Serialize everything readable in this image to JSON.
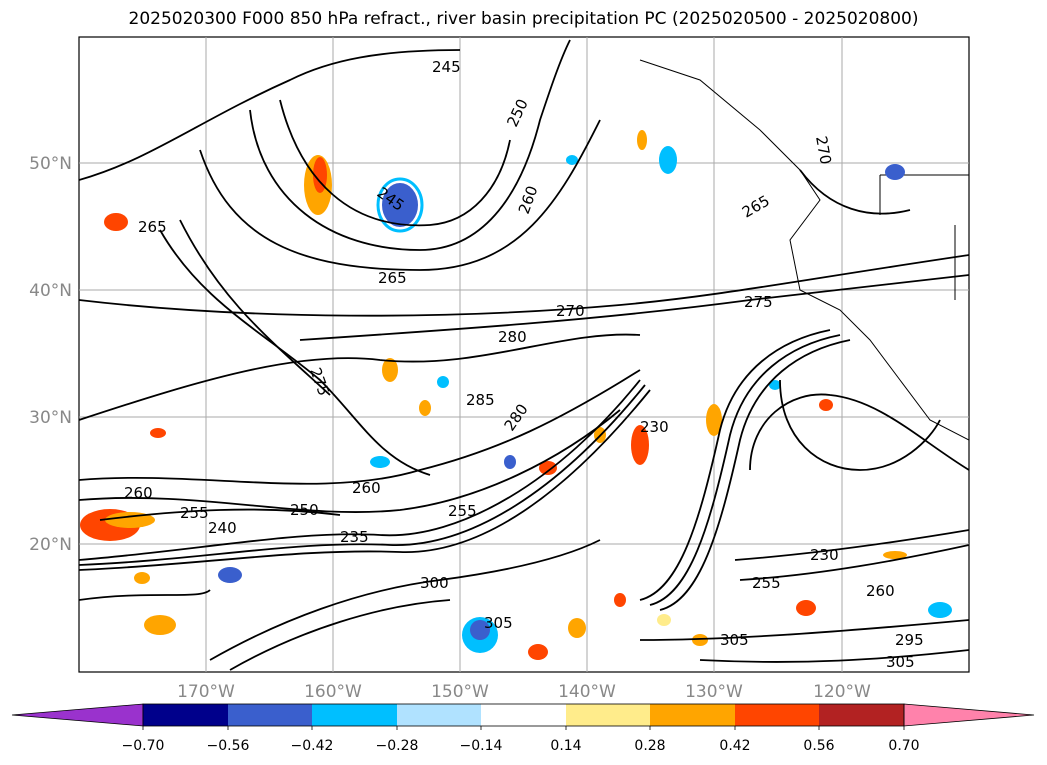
{
  "title": "2025020300 F000 850 hPa refract., river basin precipitation PC (2025020500 - 2025020800)",
  "map": {
    "lat_labels": [
      "50°N",
      "40°N",
      "30°N",
      "20°N"
    ],
    "lon_labels": [
      "170°W",
      "160°W",
      "150°W",
      "140°W",
      "130°W",
      "120°W"
    ],
    "contour_labels": [
      "245",
      "250",
      "260",
      "265",
      "270",
      "275",
      "280",
      "285",
      "265",
      "260",
      "255",
      "250",
      "235",
      "230",
      "240",
      "255",
      "260",
      "300",
      "305",
      "230",
      "255",
      "260",
      "305",
      "295",
      "305",
      "280",
      "270",
      "265",
      "245",
      "275"
    ]
  },
  "colorbar": {
    "ticks": [
      "−0.70",
      "−0.56",
      "−0.42",
      "−0.28",
      "−0.14",
      "0.14",
      "0.28",
      "0.42",
      "0.56",
      "0.70"
    ],
    "colors": [
      "#9a32cd",
      "#00008b",
      "#3a5fcd",
      "#00bfff",
      "#b0e2ff",
      "#ffffff",
      "#ffec8b",
      "#ffa500",
      "#ff4500",
      "#b22222",
      "#ff82ab"
    ]
  }
}
